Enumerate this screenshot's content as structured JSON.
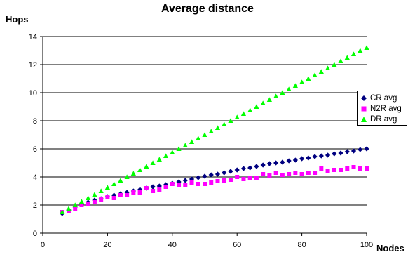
{
  "chart_data": {
    "type": "scatter",
    "title": "Average distance",
    "xlabel": "Nodes",
    "ylabel": "Hops",
    "xlim": [
      0,
      100
    ],
    "ylim": [
      0,
      14
    ],
    "x_ticks": [
      0,
      20,
      40,
      60,
      80,
      100
    ],
    "y_ticks": [
      0,
      2,
      4,
      6,
      8,
      10,
      12,
      14
    ],
    "grid": "horizontal",
    "legend_position": "right",
    "x": [
      6,
      8,
      10,
      12,
      14,
      16,
      18,
      20,
      22,
      24,
      26,
      28,
      30,
      32,
      34,
      36,
      38,
      40,
      42,
      44,
      46,
      48,
      50,
      52,
      54,
      56,
      58,
      60,
      62,
      64,
      66,
      68,
      70,
      72,
      74,
      76,
      78,
      80,
      82,
      84,
      86,
      88,
      90,
      92,
      94,
      96,
      98,
      100
    ],
    "series": [
      {
        "name": "CR avg",
        "marker": "diamond",
        "color": "#000080",
        "values": [
          1.4,
          1.65,
          1.85,
          2.05,
          2.2,
          2.35,
          2.45,
          2.6,
          2.7,
          2.8,
          2.9,
          3.0,
          3.1,
          3.2,
          3.3,
          3.35,
          3.45,
          3.55,
          3.65,
          3.75,
          3.85,
          3.95,
          4.05,
          4.15,
          4.2,
          4.3,
          4.4,
          4.5,
          4.6,
          4.65,
          4.75,
          4.85,
          4.95,
          5.0,
          5.05,
          5.15,
          5.2,
          5.3,
          5.35,
          5.45,
          5.5,
          5.55,
          5.65,
          5.7,
          5.8,
          5.85,
          5.95,
          6.0
        ]
      },
      {
        "name": "N2R avg",
        "marker": "square",
        "color": "#ff00ff",
        "values": [
          1.5,
          1.6,
          1.7,
          2.0,
          2.1,
          2.2,
          2.4,
          2.6,
          2.5,
          2.7,
          2.7,
          2.9,
          2.9,
          3.2,
          3.0,
          3.1,
          3.3,
          3.5,
          3.4,
          3.4,
          3.6,
          3.5,
          3.5,
          3.6,
          3.7,
          3.75,
          3.8,
          4.0,
          3.85,
          3.9,
          3.95,
          4.2,
          4.1,
          4.3,
          4.15,
          4.2,
          4.3,
          4.2,
          4.3,
          4.3,
          4.6,
          4.4,
          4.5,
          4.5,
          4.6,
          4.7,
          4.6,
          4.6
        ]
      },
      {
        "name": "DR avg",
        "marker": "triangle",
        "color": "#00ff00",
        "values": [
          1.5,
          1.75,
          2.0,
          2.25,
          2.5,
          2.75,
          3.0,
          3.25,
          3.5,
          3.75,
          4.0,
          4.25,
          4.5,
          4.75,
          5.0,
          5.25,
          5.5,
          5.75,
          6.0,
          6.25,
          6.5,
          6.75,
          7.0,
          7.25,
          7.5,
          7.75,
          8.0,
          8.25,
          8.5,
          8.75,
          9.0,
          9.25,
          9.5,
          9.75,
          10.0,
          10.25,
          10.5,
          10.75,
          11.0,
          11.25,
          11.5,
          11.75,
          12.0,
          12.25,
          12.5,
          12.75,
          13.0,
          13.2
        ]
      }
    ]
  }
}
